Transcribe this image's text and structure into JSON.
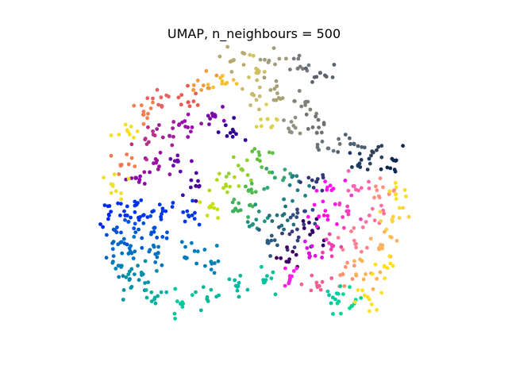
{
  "chart_data": {
    "type": "scatter",
    "title": "UMAP, n_neighbours = 500",
    "xlabel": "",
    "ylabel": "",
    "axes_visible": false,
    "grid": false,
    "legend": "none",
    "xlim": [
      0,
      10
    ],
    "ylim": [
      0,
      7
    ],
    "marker_radius_data": 0.09,
    "series": [
      {
        "values_desc": "colored by position along a hue loop",
        "points": [
          {
            "x": 1.0,
            "y": 3.0,
            "c": "#0028ef"
          },
          {
            "x": 1.4,
            "y": 3.1,
            "c": "#0030ee"
          },
          {
            "x": 1.9,
            "y": 3.0,
            "c": "#0033ea"
          },
          {
            "x": 2.5,
            "y": 3.1,
            "c": "#0035ea"
          },
          {
            "x": 3.1,
            "y": 3.0,
            "c": "#0038e8"
          },
          {
            "x": 1.2,
            "y": 2.6,
            "c": "#0050d8"
          },
          {
            "x": 1.7,
            "y": 2.6,
            "c": "#0055d5"
          },
          {
            "x": 2.2,
            "y": 2.7,
            "c": "#0050d8"
          },
          {
            "x": 1.1,
            "y": 2.2,
            "c": "#0068c8"
          },
          {
            "x": 1.6,
            "y": 2.1,
            "c": "#0070c2"
          },
          {
            "x": 2.3,
            "y": 2.1,
            "c": "#0072c0"
          },
          {
            "x": 3.0,
            "y": 2.0,
            "c": "#0078bb"
          },
          {
            "x": 3.7,
            "y": 1.9,
            "c": "#007fb5"
          },
          {
            "x": 1.3,
            "y": 1.8,
            "c": "#0080b4"
          },
          {
            "x": 1.9,
            "y": 1.6,
            "c": "#008aac"
          },
          {
            "x": 1.6,
            "y": 1.3,
            "c": "#0095a5"
          },
          {
            "x": 2.2,
            "y": 1.0,
            "c": "#00b0a0"
          },
          {
            "x": 2.9,
            "y": 0.9,
            "c": "#00c89a"
          },
          {
            "x": 3.6,
            "y": 1.0,
            "c": "#00ba9a"
          },
          {
            "x": 4.4,
            "y": 1.3,
            "c": "#00b8a0"
          },
          {
            "x": 5.1,
            "y": 1.4,
            "c": "#00c0a0"
          },
          {
            "x": 1.7,
            "y": 3.9,
            "c": "#8a0aa8"
          },
          {
            "x": 2.3,
            "y": 4.1,
            "c": "#9a10a0"
          },
          {
            "x": 2.8,
            "y": 4.3,
            "c": "#6a0aa8"
          },
          {
            "x": 3.3,
            "y": 3.7,
            "c": "#4a0598"
          },
          {
            "x": 2.0,
            "y": 4.7,
            "c": "#b83088"
          },
          {
            "x": 2.6,
            "y": 4.9,
            "c": "#a02098"
          },
          {
            "x": 3.2,
            "y": 5.1,
            "c": "#9a10a8"
          },
          {
            "x": 3.8,
            "y": 5.4,
            "c": "#7a08a8"
          },
          {
            "x": 4.3,
            "y": 5.0,
            "c": "#300098"
          },
          {
            "x": 1.9,
            "y": 5.4,
            "c": "#f08050"
          },
          {
            "x": 2.4,
            "y": 5.6,
            "c": "#e86060"
          },
          {
            "x": 3.1,
            "y": 5.7,
            "c": "#e85a50"
          },
          {
            "x": 3.5,
            "y": 6.1,
            "c": "#f09a40"
          },
          {
            "x": 4.0,
            "y": 6.2,
            "c": "#f8c030"
          },
          {
            "x": 1.3,
            "y": 4.2,
            "c": "#f07a50"
          },
          {
            "x": 1.1,
            "y": 3.7,
            "c": "#f0e030"
          },
          {
            "x": 1.5,
            "y": 5.0,
            "c": "#f8e020"
          },
          {
            "x": 4.3,
            "y": 6.7,
            "c": "#b8a870"
          },
          {
            "x": 4.9,
            "y": 6.5,
            "c": "#d0c060"
          },
          {
            "x": 5.4,
            "y": 6.6,
            "c": "#a09a78"
          },
          {
            "x": 6.0,
            "y": 6.5,
            "c": "#7a7880"
          },
          {
            "x": 6.6,
            "y": 6.4,
            "c": "#5a6070"
          },
          {
            "x": 4.8,
            "y": 5.9,
            "c": "#c8b870"
          },
          {
            "x": 5.5,
            "y": 5.8,
            "c": "#a8a070"
          },
          {
            "x": 6.2,
            "y": 5.7,
            "c": "#808078"
          },
          {
            "x": 6.4,
            "y": 5.1,
            "c": "#707070"
          },
          {
            "x": 5.2,
            "y": 5.3,
            "c": "#e0d050"
          },
          {
            "x": 5.8,
            "y": 5.0,
            "c": "#909080"
          },
          {
            "x": 6.8,
            "y": 4.6,
            "c": "#6a7078"
          },
          {
            "x": 7.4,
            "y": 4.7,
            "c": "#506070"
          },
          {
            "x": 8.0,
            "y": 4.5,
            "c": "#304058"
          },
          {
            "x": 8.6,
            "y": 4.3,
            "c": "#102850"
          },
          {
            "x": 7.6,
            "y": 4.2,
            "c": "#203a60"
          },
          {
            "x": 4.5,
            "y": 4.1,
            "c": "#90d030"
          },
          {
            "x": 5.0,
            "y": 4.3,
            "c": "#60c040"
          },
          {
            "x": 4.1,
            "y": 3.7,
            "c": "#b0d820"
          },
          {
            "x": 4.7,
            "y": 3.6,
            "c": "#50b850"
          },
          {
            "x": 5.4,
            "y": 3.9,
            "c": "#30a870"
          },
          {
            "x": 6.0,
            "y": 3.6,
            "c": "#207f80"
          },
          {
            "x": 3.7,
            "y": 3.2,
            "c": "#c8e010"
          },
          {
            "x": 4.3,
            "y": 3.1,
            "c": "#40b060"
          },
          {
            "x": 4.9,
            "y": 2.9,
            "c": "#209080"
          },
          {
            "x": 5.6,
            "y": 3.0,
            "c": "#207080"
          },
          {
            "x": 6.2,
            "y": 3.1,
            "c": "#304a80"
          },
          {
            "x": 5.3,
            "y": 2.4,
            "c": "#2a5a80"
          },
          {
            "x": 6.0,
            "y": 2.4,
            "c": "#3a3a78"
          },
          {
            "x": 5.7,
            "y": 1.9,
            "c": "#400060"
          },
          {
            "x": 6.5,
            "y": 3.8,
            "c": "#303878"
          },
          {
            "x": 6.4,
            "y": 2.6,
            "c": "#300068"
          },
          {
            "x": 6.9,
            "y": 3.6,
            "c": "#ff10f0"
          },
          {
            "x": 7.5,
            "y": 3.7,
            "c": "#ff60b0"
          },
          {
            "x": 8.1,
            "y": 3.6,
            "c": "#ff9080"
          },
          {
            "x": 8.6,
            "y": 3.5,
            "c": "#f8e020"
          },
          {
            "x": 6.7,
            "y": 3.0,
            "c": "#ff10e0"
          },
          {
            "x": 7.3,
            "y": 3.1,
            "c": "#f040c0"
          },
          {
            "x": 7.9,
            "y": 3.0,
            "c": "#ff70a0"
          },
          {
            "x": 8.5,
            "y": 2.9,
            "c": "#ffd040"
          },
          {
            "x": 6.3,
            "y": 2.1,
            "c": "#e010e0"
          },
          {
            "x": 6.9,
            "y": 2.3,
            "c": "#f040b0"
          },
          {
            "x": 7.5,
            "y": 2.4,
            "c": "#ff8090"
          },
          {
            "x": 8.2,
            "y": 2.3,
            "c": "#ffb060"
          },
          {
            "x": 5.8,
            "y": 1.5,
            "c": "#ff20e8"
          },
          {
            "x": 6.5,
            "y": 1.4,
            "c": "#f06090"
          },
          {
            "x": 7.2,
            "y": 1.6,
            "c": "#ff9070"
          },
          {
            "x": 7.8,
            "y": 1.6,
            "c": "#ffb050"
          },
          {
            "x": 8.3,
            "y": 1.8,
            "c": "#ffe010"
          },
          {
            "x": 7.0,
            "y": 1.0,
            "c": "#00c8a0"
          },
          {
            "x": 7.5,
            "y": 0.9,
            "c": "#00d890"
          },
          {
            "x": 7.9,
            "y": 1.0,
            "c": "#ffe020"
          }
        ]
      }
    ]
  }
}
